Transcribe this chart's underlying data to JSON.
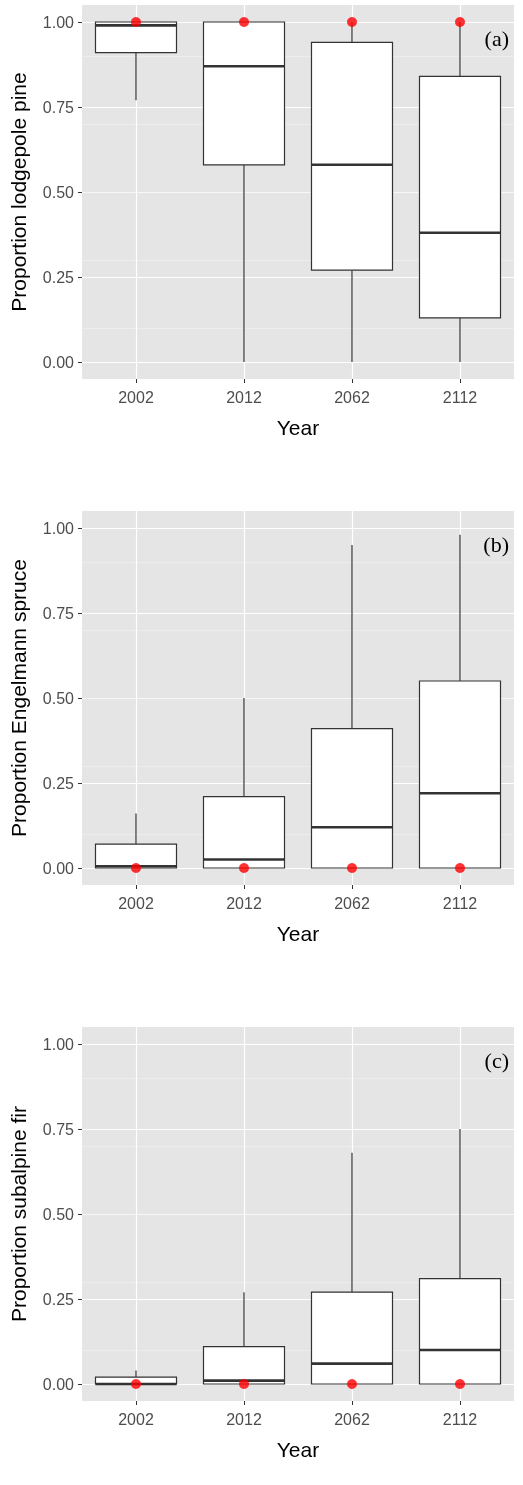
{
  "chart_data": [
    {
      "type": "box",
      "xlabel": "Year",
      "ylabel": "Proportion lodgepole pine",
      "annotations": [
        "(a)"
      ],
      "categories": [
        "2002",
        "2012",
        "2062",
        "2112"
      ],
      "ylim": [
        -0.05,
        1.05
      ],
      "yticks": [
        {
          "value": 0,
          "label": "0.00"
        },
        {
          "value": 0.25,
          "label": "0.25"
        },
        {
          "value": 0.5,
          "label": "0.50"
        },
        {
          "value": 0.75,
          "label": "0.75"
        },
        {
          "value": 1,
          "label": "1.00"
        }
      ],
      "grid": true,
      "marker": "circle",
      "series": [
        {
          "color": "#333333",
          "boxes": [
            {
              "low": 0.77,
              "q1": 0.91,
              "median": 0.99,
              "q3": 1.0,
              "high": 1.0
            },
            {
              "low": 0,
              "q1": 0.58,
              "median": 0.87,
              "q3": 1.0,
              "high": 1.0
            },
            {
              "low": 0,
              "q1": 0.27,
              "median": 0.58,
              "q3": 0.94,
              "high": 1.0
            },
            {
              "low": 0,
              "q1": 0.13,
              "median": 0.38,
              "q3": 0.84,
              "high": 1.0
            }
          ]
        },
        {
          "type": "scatter",
          "color": "#ff0000",
          "values": [
            1,
            1,
            1,
            1
          ]
        }
      ]
    },
    {
      "type": "box",
      "xlabel": "Year",
      "ylabel": "Proportion Engelmann spruce",
      "annotations": [
        "(b)"
      ],
      "categories": [
        "2002",
        "2012",
        "2062",
        "2112"
      ],
      "ylim": [
        -0.05,
        1.05
      ],
      "yticks": [
        {
          "value": 0,
          "label": "0.00"
        },
        {
          "value": 0.25,
          "label": "0.25"
        },
        {
          "value": 0.5,
          "label": "0.50"
        },
        {
          "value": 0.75,
          "label": "0.75"
        },
        {
          "value": 1,
          "label": "1.00"
        }
      ],
      "grid": true,
      "marker": "circle",
      "series": [
        {
          "color": "#333333",
          "boxes": [
            {
              "low": 0,
              "q1": 0,
              "median": 0.005,
              "q3": 0.07,
              "high": 0.16
            },
            {
              "low": 0,
              "q1": 0,
              "median": 0.025,
              "q3": 0.21,
              "high": 0.5
            },
            {
              "low": 0,
              "q1": 0,
              "median": 0.12,
              "q3": 0.41,
              "high": 0.95
            },
            {
              "low": 0,
              "q1": 0,
              "median": 0.22,
              "q3": 0.55,
              "high": 0.98
            }
          ]
        },
        {
          "type": "scatter",
          "color": "#ff0000",
          "values": [
            0,
            0,
            0,
            0
          ]
        }
      ]
    },
    {
      "type": "box",
      "xlabel": "Year",
      "ylabel": "Proportion subalpine fir",
      "annotations": [
        "(c)"
      ],
      "categories": [
        "2002",
        "2012",
        "2062",
        "2112"
      ],
      "ylim": [
        -0.05,
        1.05
      ],
      "yticks": [
        {
          "value": 0,
          "label": "0.00"
        },
        {
          "value": 0.25,
          "label": "0.25"
        },
        {
          "value": 0.5,
          "label": "0.50"
        },
        {
          "value": 0.75,
          "label": "0.75"
        },
        {
          "value": 1,
          "label": "1.00"
        }
      ],
      "grid": true,
      "marker": "circle",
      "series": [
        {
          "color": "#333333",
          "boxes": [
            {
              "low": 0,
              "q1": 0,
              "median": 0,
              "q3": 0.02,
              "high": 0.04
            },
            {
              "low": 0,
              "q1": 0,
              "median": 0.01,
              "q3": 0.11,
              "high": 0.27
            },
            {
              "low": 0,
              "q1": 0,
              "median": 0.06,
              "q3": 0.27,
              "high": 0.68
            },
            {
              "low": 0,
              "q1": 0,
              "median": 0.1,
              "q3": 0.31,
              "high": 0.75
            }
          ]
        },
        {
          "type": "scatter",
          "color": "#ff0000",
          "values": [
            0,
            0,
            0,
            0
          ]
        }
      ]
    }
  ]
}
